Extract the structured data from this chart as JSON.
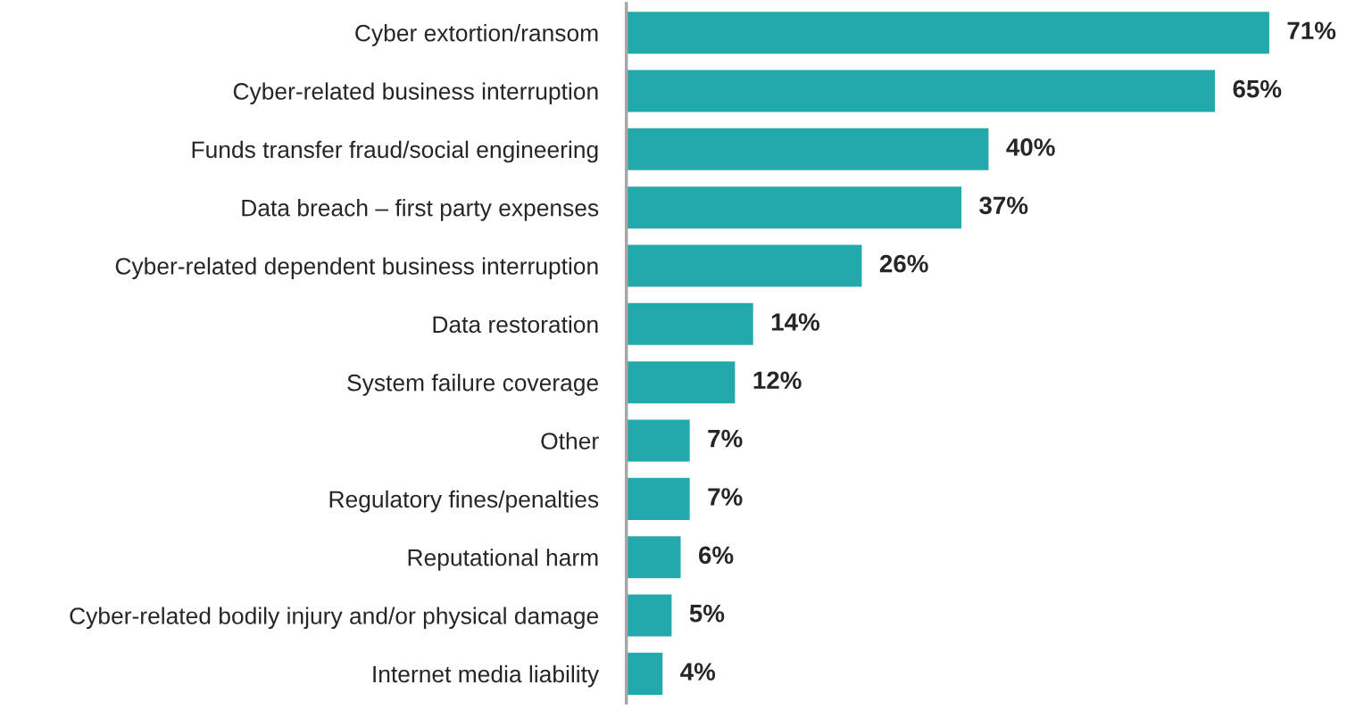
{
  "chart_data": {
    "type": "bar",
    "orientation": "horizontal",
    "categories": [
      "Cyber extortion/ransom",
      "Cyber-related business interruption",
      "Funds transfer fraud/social engineering",
      "Data breach – first party expenses",
      "Cyber-related dependent business interruption",
      "Data restoration",
      "System failure coverage",
      "Other",
      "Regulatory fines/penalties",
      "Reputational harm",
      "Cyber-related bodily injury and/or physical damage",
      "Internet media liability"
    ],
    "values": [
      71,
      65,
      40,
      37,
      26,
      14,
      12,
      7,
      7,
      6,
      5,
      4
    ],
    "value_labels": [
      "71%",
      "65%",
      "40%",
      "37%",
      "26%",
      "14%",
      "12%",
      "7%",
      "7%",
      "6%",
      "5%",
      "4%"
    ],
    "color": "#23a8ab",
    "grid": false,
    "legend": false
  }
}
